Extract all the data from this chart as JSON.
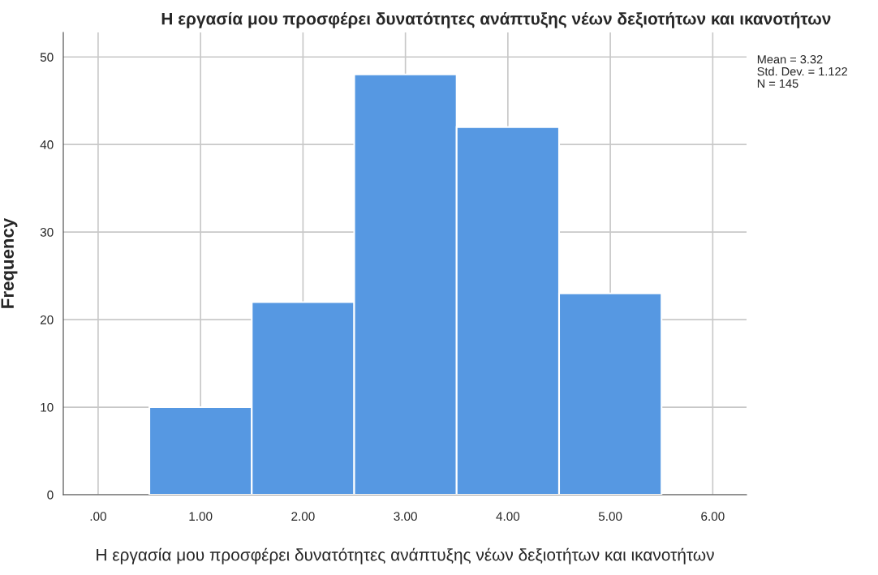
{
  "chart_data": {
    "type": "histogram",
    "title": "Η εργασία μου προσφέρει δυνατότητες ανάπτυξης νέων δεξιοτήτων και ικανοτήτων",
    "xlabel": "Η εργασία μου προσφέρει δυνατότητες ανάπτυξης νέων δεξιοτήτων και ικανοτήτων",
    "ylabel": "Frequency",
    "bins": [
      0.5,
      1.5,
      2.5,
      3.5,
      4.5,
      5.5
    ],
    "values": [
      10,
      22,
      48,
      42,
      23
    ],
    "color": "#5698e2",
    "xlim": [
      -0.34,
      6.33
    ],
    "ylim": [
      0,
      52.8
    ],
    "xticks": [
      {
        "value": 0,
        "label": ".00"
      },
      {
        "value": 1,
        "label": "1.00"
      },
      {
        "value": 2,
        "label": "2.00"
      },
      {
        "value": 3,
        "label": "3.00"
      },
      {
        "value": 4,
        "label": "4.00"
      },
      {
        "value": 5,
        "label": "5.00"
      },
      {
        "value": 6,
        "label": "6.00"
      }
    ],
    "yticks": [
      0,
      10,
      20,
      30,
      40,
      50
    ],
    "grid": true,
    "annotations": [
      "Mean = 3.32",
      "Std. Dev. = 1.122",
      "N = 145"
    ]
  }
}
